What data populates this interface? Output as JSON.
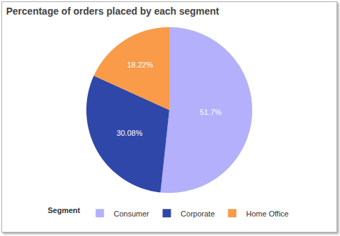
{
  "chart_data": {
    "type": "pie",
    "title": "Percentage of orders placed by each segment",
    "categories": [
      "Consumer",
      "Corporate",
      "Home Office"
    ],
    "values": [
      51.7,
      30.08,
      18.22
    ],
    "value_labels": [
      "51.7%",
      "30.08%",
      "18.22%"
    ],
    "colors": [
      "#b4b0fb",
      "#2f47a8",
      "#f99b48"
    ],
    "data_labels": true,
    "legend": "bottom",
    "legend_title": "Segment"
  }
}
